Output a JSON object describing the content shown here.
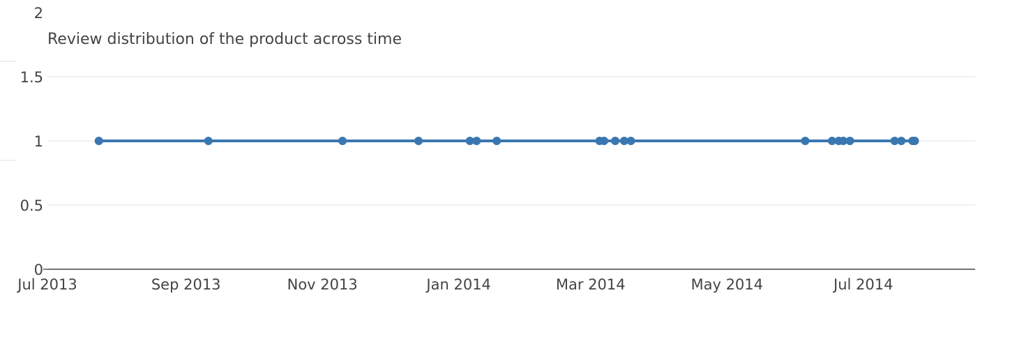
{
  "chart_data": {
    "type": "line",
    "title": "Review distribution of the product across time",
    "xlabel": "",
    "ylabel": "",
    "x_axis_kind": "date",
    "xlim": [
      "2013-07-01",
      "2014-08-20"
    ],
    "ylim": [
      0,
      2
    ],
    "y_ticks": [
      0,
      0.5,
      1,
      1.5,
      2
    ],
    "y_tick_labels": [
      "0",
      "0.5",
      "1",
      "1.5",
      "2"
    ],
    "x_ticks": [
      "2013-07-01",
      "2013-09-01",
      "2013-11-01",
      "2014-01-01",
      "2014-03-01",
      "2014-05-01",
      "2014-07-01"
    ],
    "x_tick_labels": [
      "Jul 2013",
      "Sep 2013",
      "Nov 2013",
      "Jan 2014",
      "Mar 2014",
      "May 2014",
      "Jul 2014"
    ],
    "grid": true,
    "legend": "none",
    "series": [
      {
        "color": "#3a77b0",
        "x": [
          "2013-07-24",
          "2013-09-11",
          "2013-11-10",
          "2013-12-14",
          "2014-01-06",
          "2014-01-09",
          "2014-01-18",
          "2014-03-05",
          "2014-03-07",
          "2014-03-12",
          "2014-03-16",
          "2014-03-19",
          "2014-06-05",
          "2014-06-17",
          "2014-06-20",
          "2014-06-22",
          "2014-06-25",
          "2014-07-15",
          "2014-07-18",
          "2014-07-23",
          "2014-07-24"
        ],
        "y": [
          1,
          1,
          1,
          1,
          1,
          1,
          1,
          1,
          1,
          1,
          1,
          1,
          1,
          1,
          1,
          1,
          1,
          1,
          1,
          1,
          1
        ]
      }
    ]
  }
}
